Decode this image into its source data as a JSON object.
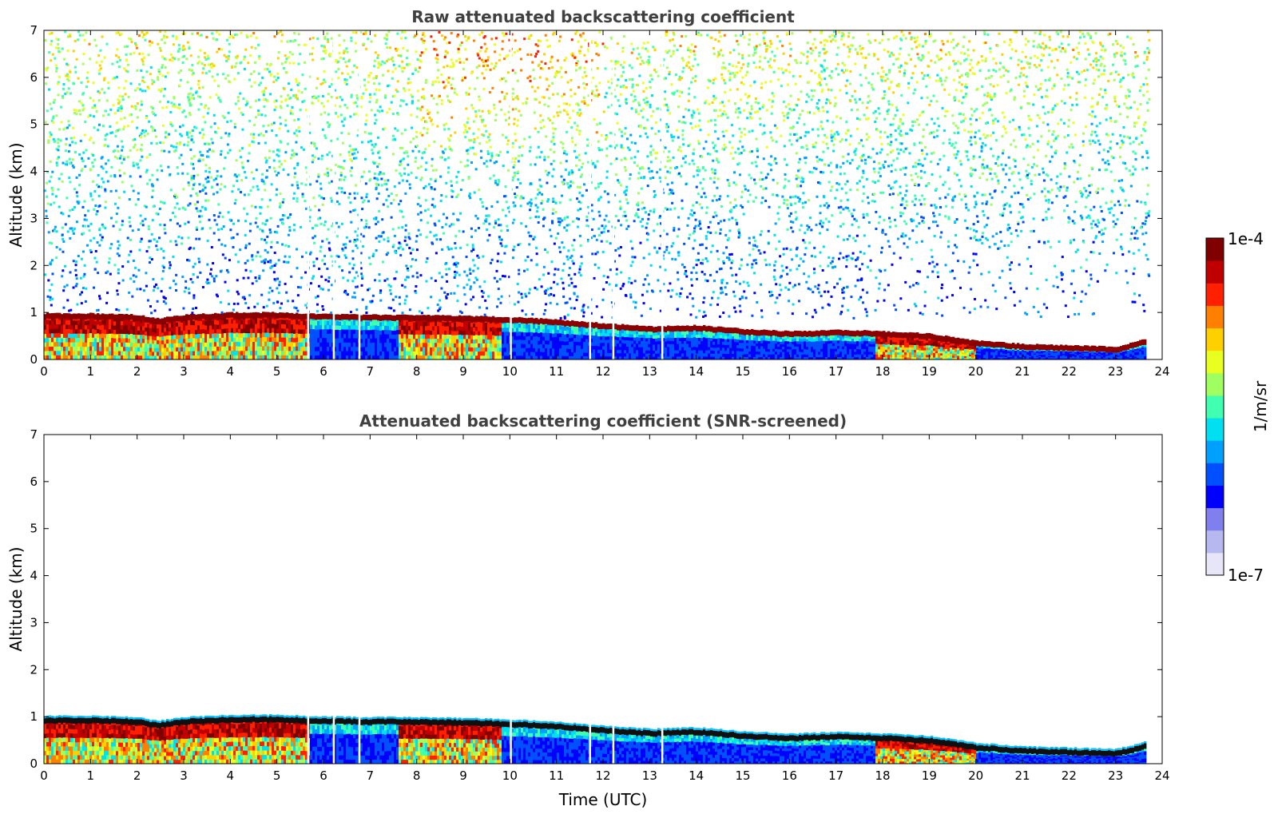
{
  "chart_data": [
    {
      "type": "heatmap",
      "title": "Raw attenuated backscattering coefficient",
      "xlabel": "",
      "ylabel": "Altitude (km)",
      "xlim": [
        0,
        24
      ],
      "ylim": [
        0,
        7
      ],
      "x_ticks": [
        0,
        1,
        2,
        3,
        4,
        5,
        6,
        7,
        8,
        9,
        10,
        11,
        12,
        13,
        14,
        15,
        16,
        17,
        18,
        19,
        20,
        21,
        22,
        23,
        24
      ],
      "y_ticks": [
        0,
        1,
        2,
        3,
        4,
        5,
        6,
        7
      ],
      "data_end_time": 23.7,
      "data_gaps_utc": [
        5.65,
        6.2,
        6.75,
        10.0,
        11.7,
        12.2,
        13.25
      ],
      "boundary_layer_top_km": [
        [
          0,
          0.93
        ],
        [
          1,
          0.93
        ],
        [
          2,
          0.9
        ],
        [
          2.4,
          0.82
        ],
        [
          3,
          0.9
        ],
        [
          4,
          0.95
        ],
        [
          5,
          0.95
        ],
        [
          5.7,
          0.92
        ],
        [
          7,
          0.9
        ],
        [
          8,
          0.9
        ],
        [
          9,
          0.88
        ],
        [
          10,
          0.85
        ],
        [
          11,
          0.8
        ],
        [
          12,
          0.72
        ],
        [
          13,
          0.65
        ],
        [
          14,
          0.68
        ],
        [
          15,
          0.6
        ],
        [
          16,
          0.55
        ],
        [
          17,
          0.58
        ],
        [
          18,
          0.55
        ],
        [
          19,
          0.5
        ],
        [
          20,
          0.35
        ],
        [
          21,
          0.28
        ],
        [
          22,
          0.25
        ],
        [
          23,
          0.22
        ],
        [
          23.7,
          0.4
        ]
      ],
      "noise_level": "high"
    },
    {
      "type": "heatmap",
      "title": "Attenuated backscattering coefficient (SNR-screened)",
      "xlabel": "Time (UTC)",
      "ylabel": "Altitude (km)",
      "xlim": [
        0,
        24
      ],
      "ylim": [
        0,
        7
      ],
      "x_ticks": [
        0,
        1,
        2,
        3,
        4,
        5,
        6,
        7,
        8,
        9,
        10,
        11,
        12,
        13,
        14,
        15,
        16,
        17,
        18,
        19,
        20,
        21,
        22,
        23,
        24
      ],
      "y_ticks": [
        0,
        1,
        2,
        3,
        4,
        5,
        6,
        7
      ],
      "data_end_time": 23.7,
      "data_gaps_utc": [
        5.65,
        6.2,
        6.75,
        10.0,
        11.7,
        12.2,
        13.25
      ],
      "boundary_layer_top_km": [
        [
          0,
          0.93
        ],
        [
          1,
          0.93
        ],
        [
          2,
          0.9
        ],
        [
          2.4,
          0.82
        ],
        [
          3,
          0.9
        ],
        [
          4,
          0.95
        ],
        [
          5,
          0.95
        ],
        [
          5.7,
          0.92
        ],
        [
          7,
          0.9
        ],
        [
          8,
          0.9
        ],
        [
          9,
          0.88
        ],
        [
          10,
          0.85
        ],
        [
          11,
          0.8
        ],
        [
          12,
          0.72
        ],
        [
          13,
          0.65
        ],
        [
          14,
          0.68
        ],
        [
          15,
          0.6
        ],
        [
          16,
          0.55
        ],
        [
          17,
          0.58
        ],
        [
          18,
          0.55
        ],
        [
          19,
          0.5
        ],
        [
          20,
          0.35
        ],
        [
          21,
          0.28
        ],
        [
          22,
          0.25
        ],
        [
          23,
          0.22
        ],
        [
          23.7,
          0.4
        ]
      ],
      "noise_level": "screened"
    }
  ],
  "colorbar": {
    "max_label": "1e-4",
    "min_label": "1e-7",
    "unit_label": "1/m/sr",
    "colormap": "jet",
    "scale": "log",
    "colors": [
      "#e6e6f8",
      "#b8b8f0",
      "#7f7fee",
      "#0000ff",
      "#0050ff",
      "#00a0ff",
      "#00e0f0",
      "#40ffb0",
      "#a0ff60",
      "#e8ff20",
      "#ffd000",
      "#ff8000",
      "#ff2000",
      "#c00000",
      "#800000"
    ]
  }
}
